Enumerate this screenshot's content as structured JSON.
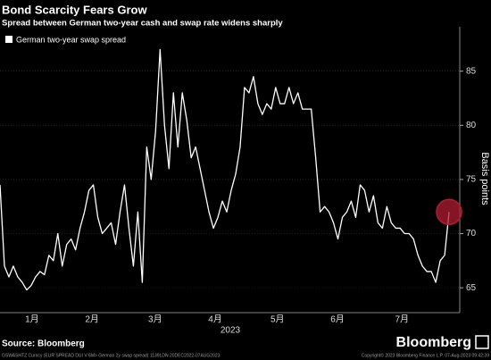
{
  "chart_data": {
    "type": "line",
    "title": "Bond Scarcity Fears Grow",
    "subtitle": "Spread between German two-year cash and swap rate widens sharply",
    "ylabel": "Basis points",
    "xlabel": "2023",
    "series": [
      {
        "name": "German two-year swap spread",
        "color": "#ffffff",
        "values": [
          74.5,
          67,
          66,
          67,
          66,
          65.5,
          64.8,
          65.2,
          66,
          66.5,
          66.2,
          68,
          67.5,
          70,
          67,
          69,
          69.5,
          68.5,
          70.5,
          72,
          74,
          74.5,
          71.5,
          70,
          70.5,
          71,
          69,
          72,
          74.5,
          70.5,
          67,
          72,
          65.5,
          78,
          75,
          79.5,
          87,
          80,
          76,
          83,
          78,
          83,
          80.5,
          77,
          78,
          76,
          74,
          72,
          70.5,
          71.5,
          73,
          72,
          74,
          75.5,
          78,
          83.5,
          83,
          84.5,
          82,
          81,
          82,
          81.5,
          83.5,
          82,
          82,
          83.5,
          82,
          83,
          81.5,
          81.5,
          81.5,
          77,
          72,
          72.5,
          72,
          71,
          69.5,
          71.5,
          72,
          73,
          71.5,
          74.5,
          74,
          72,
          73.5,
          71,
          70.5,
          72.5,
          71,
          70.5,
          70.5,
          70,
          70,
          69.5,
          68,
          67,
          66.5,
          66.5,
          65.5,
          67.5,
          68,
          72
        ]
      }
    ],
    "xlim": [
      0,
      103.4
    ],
    "xticks": [
      {
        "value": 7.2,
        "label": "1月"
      },
      {
        "value": 20.7,
        "label": "2月"
      },
      {
        "value": 34.9,
        "label": "3月"
      },
      {
        "value": 48.4,
        "label": "4月"
      },
      {
        "value": 62.4,
        "label": "5月"
      },
      {
        "value": 75.9,
        "label": "6月"
      },
      {
        "value": 90.4,
        "label": "7月"
      }
    ],
    "ylim": [
      62.7,
      89.1
    ],
    "yticks": [
      65,
      70,
      75,
      80,
      85
    ],
    "grid": true,
    "highlight_color": "#b01c32"
  },
  "footer": {
    "source": "Source: Bloomberg",
    "logo": "Bloomberg",
    "note": "GSWASHTZ Curncy (EUR SPREAD DUI V 6M> German 2y swap spread) 1139LDN 20DEC2022-07AUG2023",
    "copyright": "Copyright© 2023 Bloomberg Finance L.P.   07-Aug-2023 09:42:39"
  }
}
